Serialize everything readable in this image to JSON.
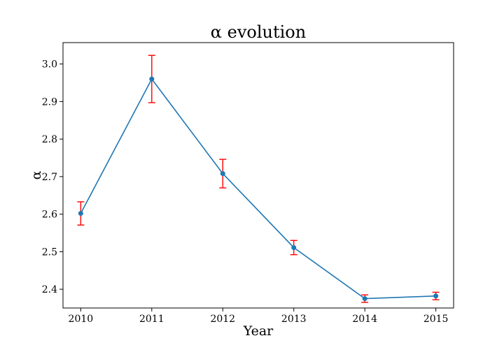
{
  "chart_data": {
    "type": "line",
    "title": "α evolution",
    "xlabel": "Year",
    "ylabel": "α",
    "x": [
      2010,
      2011,
      2012,
      2013,
      2014,
      2015
    ],
    "x_tick_labels": [
      "2010",
      "2011",
      "2012",
      "2013",
      "2014",
      "2015"
    ],
    "y_ticks": [
      2.4,
      2.5,
      2.6,
      2.7,
      2.8,
      2.9,
      3.0
    ],
    "y_tick_labels": [
      "2.4",
      "2.5",
      "2.6",
      "2.7",
      "2.8",
      "2.9",
      "3.0"
    ],
    "xlim": [
      2009.75,
      2015.25
    ],
    "ylim": [
      2.35,
      3.057
    ],
    "grid": false,
    "series": [
      {
        "values": [
          2.602,
          2.96,
          2.708,
          2.511,
          2.375,
          2.382
        ],
        "error": [
          0.031,
          0.063,
          0.038,
          0.019,
          0.01,
          0.01
        ],
        "line_color": "#1f77b4",
        "marker_color": "#1f77b4",
        "error_color": "#ff0000"
      }
    ]
  }
}
